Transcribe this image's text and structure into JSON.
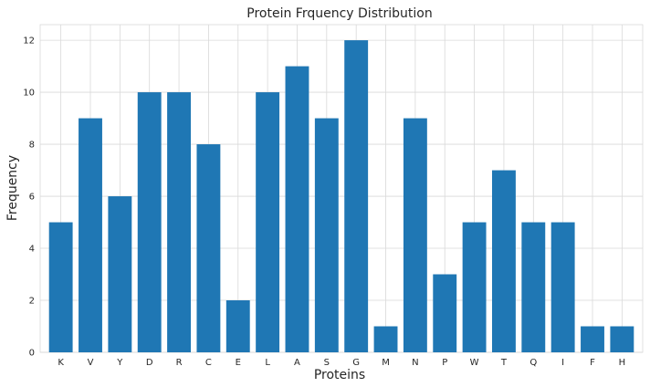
{
  "chart_data": {
    "type": "bar",
    "title": "Protein Frquency Distribution",
    "xlabel": "Proteins",
    "ylabel": "Frequency",
    "categories": [
      "K",
      "V",
      "Y",
      "D",
      "R",
      "C",
      "E",
      "L",
      "A",
      "S",
      "G",
      "M",
      "N",
      "P",
      "W",
      "T",
      "Q",
      "I",
      "F",
      "H"
    ],
    "values": [
      5,
      9,
      6,
      10,
      10,
      8,
      2,
      10,
      11,
      9,
      12,
      1,
      9,
      3,
      5,
      7,
      5,
      5,
      1,
      1
    ],
    "ylim": [
      0,
      12.6
    ],
    "yticks": [
      0,
      2,
      4,
      6,
      8,
      10,
      12
    ],
    "grid": true,
    "bar_color": "#1f77b4",
    "grid_color": "#d9d9d9"
  }
}
